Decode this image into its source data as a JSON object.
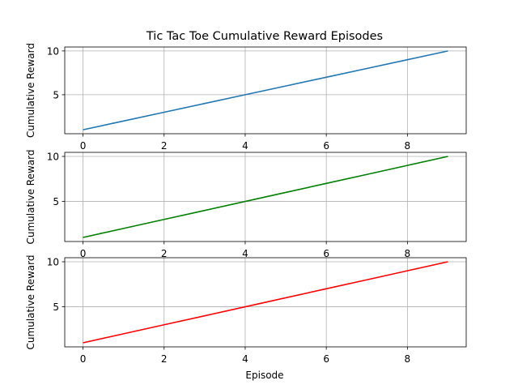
{
  "chart_data": {
    "title": "Tic Tac Toe Cumulative Reward Episodes",
    "xlabel": "Episode",
    "type": "line",
    "panels": [
      {
        "ylabel": "Cumulative Reward",
        "color": "#1f77b4",
        "x": [
          0,
          1,
          2,
          3,
          4,
          5,
          6,
          7,
          8,
          9
        ],
        "y": [
          1,
          2,
          3,
          4,
          5,
          6,
          7,
          8,
          9,
          10
        ],
        "xlim": [
          -0.45,
          9.45
        ],
        "ylim": [
          0.55,
          10.45
        ],
        "xticks": [
          0,
          2,
          4,
          6,
          8
        ],
        "yticks": [
          5,
          10
        ],
        "grid": true
      },
      {
        "ylabel": "Cumulative Reward",
        "color": "#008000",
        "x": [
          0,
          1,
          2,
          3,
          4,
          5,
          6,
          7,
          8,
          9
        ],
        "y": [
          1,
          2,
          3,
          4,
          5,
          6,
          7,
          8,
          9,
          10
        ],
        "xlim": [
          -0.45,
          9.45
        ],
        "ylim": [
          0.55,
          10.45
        ],
        "xticks": [
          0,
          2,
          4,
          6,
          8
        ],
        "yticks": [
          5,
          10
        ],
        "grid": true
      },
      {
        "ylabel": "Cumulative Reward",
        "color": "#ff0000",
        "x": [
          0,
          1,
          2,
          3,
          4,
          5,
          6,
          7,
          8,
          9
        ],
        "y": [
          1,
          2,
          3,
          4,
          5,
          6,
          7,
          8,
          9,
          10
        ],
        "xlim": [
          -0.45,
          9.45
        ],
        "ylim": [
          0.55,
          10.45
        ],
        "xticks": [
          0,
          2,
          4,
          6,
          8
        ],
        "yticks": [
          5,
          10
        ],
        "grid": true
      }
    ]
  }
}
